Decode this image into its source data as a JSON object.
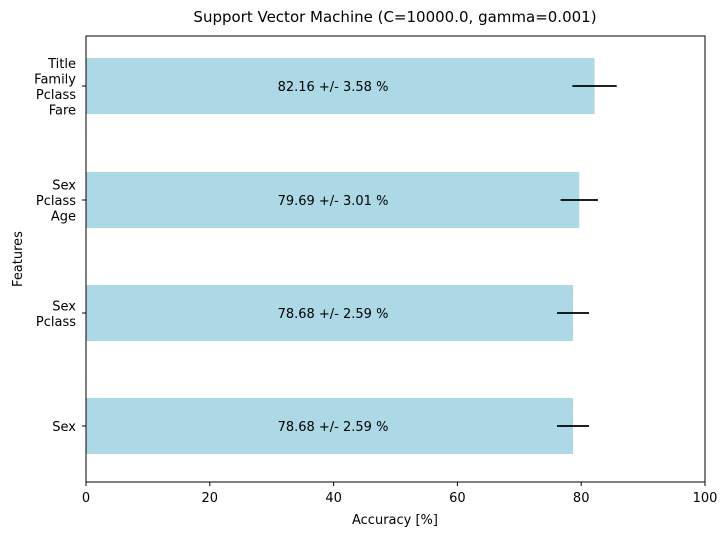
{
  "chart_data": {
    "type": "bar",
    "orientation": "horizontal",
    "title": "Support Vector Machine (C=10000.0, gamma=0.001)",
    "xlabel": "Accuracy [%]",
    "ylabel": "Features",
    "xlim": [
      0,
      100
    ],
    "xticks": [
      0,
      20,
      40,
      60,
      80,
      100
    ],
    "bar_color": "#add8e6",
    "error_color": "#000000",
    "grid": false,
    "categories": [
      [
        "Sex"
      ],
      [
        "Sex",
        "Pclass"
      ],
      [
        "Sex",
        "Pclass",
        "Age"
      ],
      [
        "Title",
        "Family",
        "Pclass",
        "Fare"
      ]
    ],
    "values": [
      78.68,
      78.68,
      79.69,
      82.16
    ],
    "errors": [
      2.59,
      2.59,
      3.01,
      3.58
    ],
    "data_labels": [
      "78.68 +/- 2.59 %",
      "78.68 +/- 2.59 %",
      "79.69 +/- 3.01 %",
      "82.16 +/- 3.58 %"
    ]
  }
}
